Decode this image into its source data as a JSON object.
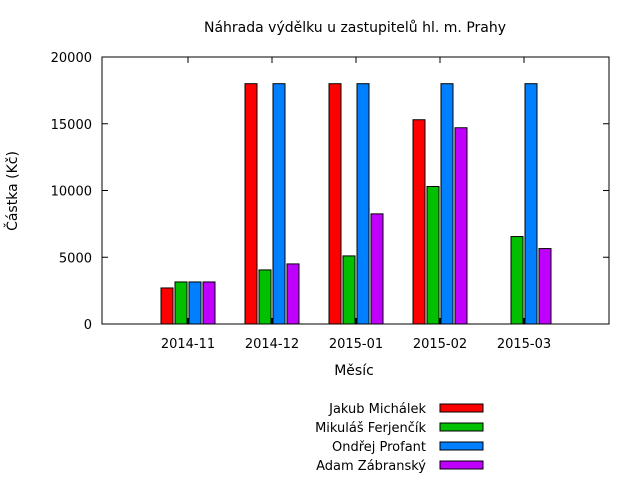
{
  "chart_data": {
    "type": "bar",
    "title": "Náhrada výdělku u zastupitelů hl. m. Prahy",
    "xlabel": "Měsíc",
    "ylabel": "Částka (Kč)",
    "ylim": [
      0,
      20000
    ],
    "yticks": [
      0,
      5000,
      10000,
      15000,
      20000
    ],
    "categories": [
      "2014-11",
      "2014-12",
      "2015-01",
      "2015-02",
      "2015-03"
    ],
    "series": [
      {
        "name": "Jakub Michálek",
        "color": "#ff0000",
        "values": [
          2700,
          18000,
          18000,
          15300,
          null
        ]
      },
      {
        "name": "Mikuláš Ferjenčík",
        "color": "#00c000",
        "values": [
          3150,
          4050,
          5100,
          10300,
          6550
        ]
      },
      {
        "name": "Ondřej Profant",
        "color": "#0080ff",
        "values": [
          3150,
          18000,
          18000,
          18000,
          18000
        ]
      },
      {
        "name": "Adam Zábranský",
        "color": "#c000ff",
        "values": [
          3150,
          4500,
          8250,
          14700,
          5650
        ]
      }
    ],
    "legend_position": "bottom",
    "grid": false
  }
}
